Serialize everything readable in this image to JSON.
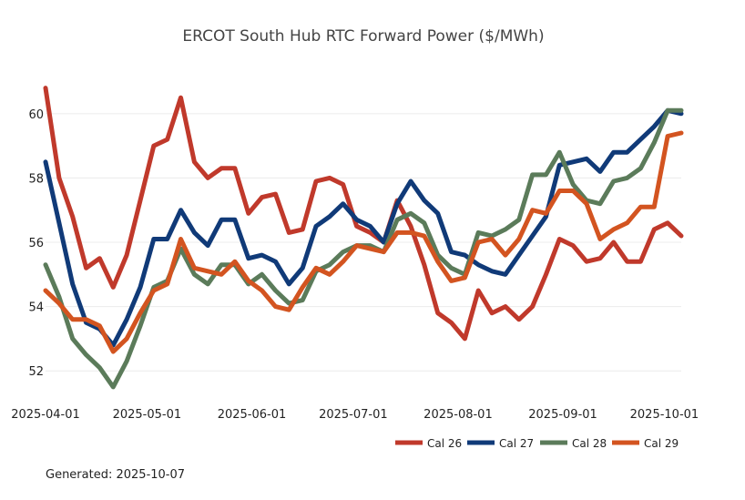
{
  "chart_data": {
    "type": "line",
    "title": "ERCOT South Hub RTC Forward Power ($/MWh)",
    "xlabel": "",
    "ylabel": "",
    "ylim": [
      51.1,
      61.1
    ],
    "xlim": [
      "2025-04-01",
      "2025-10-06"
    ],
    "yticks": [
      52,
      54,
      56,
      58,
      60
    ],
    "xticks": [
      "2025-04-01",
      "2025-05-01",
      "2025-06-01",
      "2025-07-01",
      "2025-08-01",
      "2025-09-01",
      "2025-10-01"
    ],
    "grid": true,
    "legend_position": "bottom-right",
    "x": [
      "2025-04-01",
      "2025-04-05",
      "2025-04-09",
      "2025-04-13",
      "2025-04-17",
      "2025-04-21",
      "2025-04-25",
      "2025-04-29",
      "2025-05-03",
      "2025-05-07",
      "2025-05-11",
      "2025-05-15",
      "2025-05-19",
      "2025-05-23",
      "2025-05-27",
      "2025-05-31",
      "2025-06-04",
      "2025-06-08",
      "2025-06-12",
      "2025-06-16",
      "2025-06-20",
      "2025-06-24",
      "2025-06-28",
      "2025-07-02",
      "2025-07-06",
      "2025-07-10",
      "2025-07-14",
      "2025-07-18",
      "2025-07-22",
      "2025-07-26",
      "2025-07-30",
      "2025-08-03",
      "2025-08-07",
      "2025-08-11",
      "2025-08-15",
      "2025-08-19",
      "2025-08-23",
      "2025-08-27",
      "2025-08-31",
      "2025-09-04",
      "2025-09-08",
      "2025-09-12",
      "2025-09-16",
      "2025-09-20",
      "2025-09-24",
      "2025-09-28",
      "2025-10-02",
      "2025-10-06"
    ],
    "series": [
      {
        "name": "Cal 26",
        "color": "#c0392b",
        "values": [
          60.8,
          58.0,
          56.8,
          55.2,
          55.5,
          54.6,
          55.6,
          57.3,
          59.0,
          59.2,
          60.5,
          58.5,
          58.0,
          58.3,
          58.3,
          56.9,
          57.4,
          57.5,
          56.3,
          56.4,
          57.9,
          58.0,
          57.8,
          56.5,
          56.3,
          56.0,
          57.3,
          56.5,
          55.3,
          53.8,
          53.5,
          53.0,
          54.5,
          53.8,
          54.0,
          53.6,
          54.0,
          55.0,
          56.1,
          55.9,
          55.4,
          55.5,
          56.0,
          55.4,
          55.4,
          56.4,
          56.6,
          56.2
        ]
      },
      {
        "name": "Cal 27",
        "color": "#103a78",
        "values": [
          58.5,
          56.6,
          54.7,
          53.5,
          53.3,
          52.8,
          53.6,
          54.6,
          56.1,
          56.1,
          57.0,
          56.3,
          55.9,
          56.7,
          56.7,
          55.5,
          55.6,
          55.4,
          54.7,
          55.2,
          56.5,
          56.8,
          57.2,
          56.7,
          56.5,
          56.0,
          57.2,
          57.9,
          57.3,
          56.9,
          55.7,
          55.6,
          55.3,
          55.1,
          55.0,
          55.6,
          56.2,
          56.8,
          58.4,
          58.5,
          58.6,
          58.2,
          58.8,
          58.8,
          59.2,
          59.6,
          60.1,
          60.0
        ]
      },
      {
        "name": "Cal 28",
        "color": "#5b7b5a",
        "values": [
          55.3,
          54.3,
          53.0,
          52.5,
          52.1,
          51.5,
          52.3,
          53.4,
          54.6,
          54.8,
          55.8,
          55.0,
          54.7,
          55.3,
          55.3,
          54.7,
          55.0,
          54.5,
          54.1,
          54.2,
          55.1,
          55.3,
          55.7,
          55.9,
          55.9,
          55.7,
          56.7,
          56.9,
          56.6,
          55.6,
          55.2,
          55.0,
          56.3,
          56.2,
          56.4,
          56.7,
          58.1,
          58.1,
          58.8,
          57.8,
          57.3,
          57.2,
          57.9,
          58.0,
          58.3,
          59.1,
          60.1,
          60.1
        ]
      },
      {
        "name": "Cal 29",
        "color": "#d35420",
        "values": [
          54.5,
          54.1,
          53.6,
          53.6,
          53.4,
          52.6,
          53.0,
          53.8,
          54.5,
          54.7,
          56.1,
          55.2,
          55.1,
          55.0,
          55.4,
          54.8,
          54.5,
          54.0,
          53.9,
          54.6,
          55.2,
          55.0,
          55.4,
          55.9,
          55.8,
          55.7,
          56.3,
          56.3,
          56.2,
          55.4,
          54.8,
          54.9,
          56.0,
          56.1,
          55.6,
          56.1,
          57.0,
          56.9,
          57.6,
          57.6,
          57.2,
          56.1,
          56.4,
          56.6,
          57.1,
          57.1,
          59.3,
          59.4
        ]
      }
    ],
    "annotation": "Generated: 2025-10-07"
  }
}
